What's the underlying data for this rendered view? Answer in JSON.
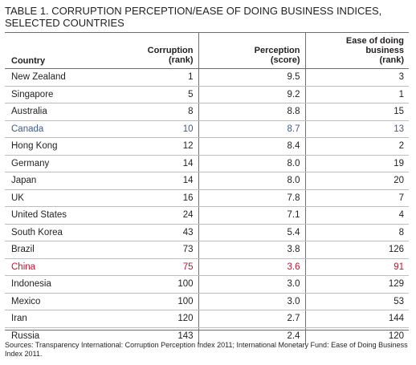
{
  "title": "TABLE 1. CORRUPTION PERCEPTION/EASE OF DOING BUSINESS INDICES, SELECTED COUNTRIES",
  "headers": {
    "country": "Country",
    "corruption_line1": "Corruption",
    "corruption_line2": "(rank)",
    "perception_line1": "Perception",
    "perception_line2": "(score)",
    "ease_line1": "Ease of doing business",
    "ease_line2": "(rank)"
  },
  "rows": [
    {
      "country": "New Zealand",
      "corruption": "1",
      "perception": "9.5",
      "ease": "3"
    },
    {
      "country": "Singapore",
      "corruption": "5",
      "perception": "9.2",
      "ease": "1"
    },
    {
      "country": "Australia",
      "corruption": "8",
      "perception": "8.8",
      "ease": "15"
    },
    {
      "country": "Canada",
      "corruption": "10",
      "perception": "8.7",
      "ease": "13"
    },
    {
      "country": "Hong Kong",
      "corruption": "12",
      "perception": "8.4",
      "ease": "2"
    },
    {
      "country": "Germany",
      "corruption": "14",
      "perception": "8.0",
      "ease": "19"
    },
    {
      "country": "Japan",
      "corruption": "14",
      "perception": "8.0",
      "ease": "20"
    },
    {
      "country": "UK",
      "corruption": "16",
      "perception": "7.8",
      "ease": "7"
    },
    {
      "country": "United States",
      "corruption": "24",
      "perception": "7.1",
      "ease": "4"
    },
    {
      "country": "South Korea",
      "corruption": "43",
      "perception": "5.4",
      "ease": "8"
    },
    {
      "country": "Brazil",
      "corruption": "73",
      "perception": "3.8",
      "ease": "126"
    },
    {
      "country": "China",
      "corruption": "75",
      "perception": "3.6",
      "ease": "91"
    },
    {
      "country": "Indonesia",
      "corruption": "100",
      "perception": "3.0",
      "ease": "129"
    },
    {
      "country": "Mexico",
      "corruption": "100",
      "perception": "3.0",
      "ease": "53"
    },
    {
      "country": "Iran",
      "corruption": "120",
      "perception": "2.7",
      "ease": "144"
    },
    {
      "country": "Russia",
      "corruption": "143",
      "perception": "2.4",
      "ease": "120"
    }
  ],
  "highlight_colors": {
    "Canada": "#3e5a8a",
    "China": "#c8102e"
  },
  "sources": "Sources: Transparency International: Corruption Perception Index 2011; International Monetary Fund: Ease of Doing Business Index 2011."
}
